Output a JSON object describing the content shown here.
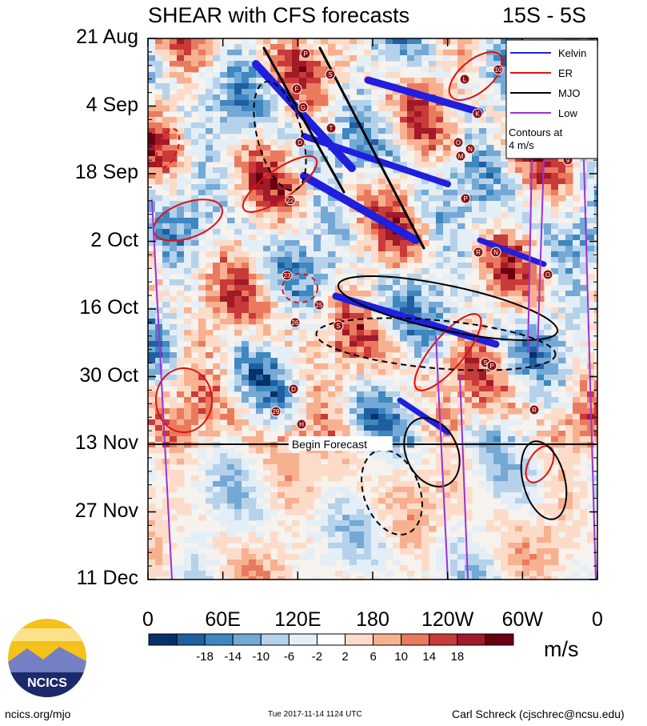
{
  "chart_data": {
    "type": "heatmap",
    "title_left": "SHEAR with CFS forecasts",
    "title_right": "15S - 5S",
    "y_ticks": [
      "21 Aug",
      "4 Sep",
      "18 Sep",
      "2 Oct",
      "16 Oct",
      "30 Oct",
      "13 Nov",
      "27 Nov",
      "11 Dec"
    ],
    "x_ticks": [
      "0",
      "60E",
      "120E",
      "180",
      "120W",
      "60W",
      "0"
    ],
    "x_range_deg": [
      0,
      360
    ],
    "forecast_line_label": "Begin Forecast",
    "forecast_start": "13 Nov",
    "legend": [
      {
        "label": "Kelvin",
        "color": "#1f1fdd"
      },
      {
        "label": "ER",
        "color": "#e01010"
      },
      {
        "label": "MJO",
        "color": "#000000"
      },
      {
        "label": "Low",
        "color": "#9b30d9"
      }
    ],
    "legend_note": [
      "Contours at",
      "4 m/s"
    ],
    "colorbar": {
      "levels": [
        "-18",
        "-14",
        "-10",
        "-6",
        "-2",
        "2",
        "6",
        "10",
        "14",
        "18"
      ],
      "colors": [
        "#08306b",
        "#1f5fa0",
        "#3f87c0",
        "#74a9d6",
        "#b5d2ea",
        "#e4eef6",
        "#ffffff",
        "#fcdcc8",
        "#f7b191",
        "#ea7a5e",
        "#c93a3a",
        "#a01a28",
        "#6b0013"
      ],
      "units": "m/s"
    },
    "storm_markers": [
      "P",
      "S",
      "F",
      "G",
      "T",
      "D",
      "L",
      "10",
      "K",
      "O",
      "N",
      "M",
      "P",
      "22",
      "R",
      "N",
      "O",
      "23",
      "25",
      "26",
      "S",
      "S",
      "P",
      "D",
      "29",
      "H",
      "R",
      "9"
    ]
  },
  "footer": {
    "logo_text": "NCICS",
    "left": "ncics.org/mjo",
    "center": "Tue 2017-11-14 1124 UTC",
    "right": "Carl Schreck (cjschrec@ncsu.edu)"
  }
}
